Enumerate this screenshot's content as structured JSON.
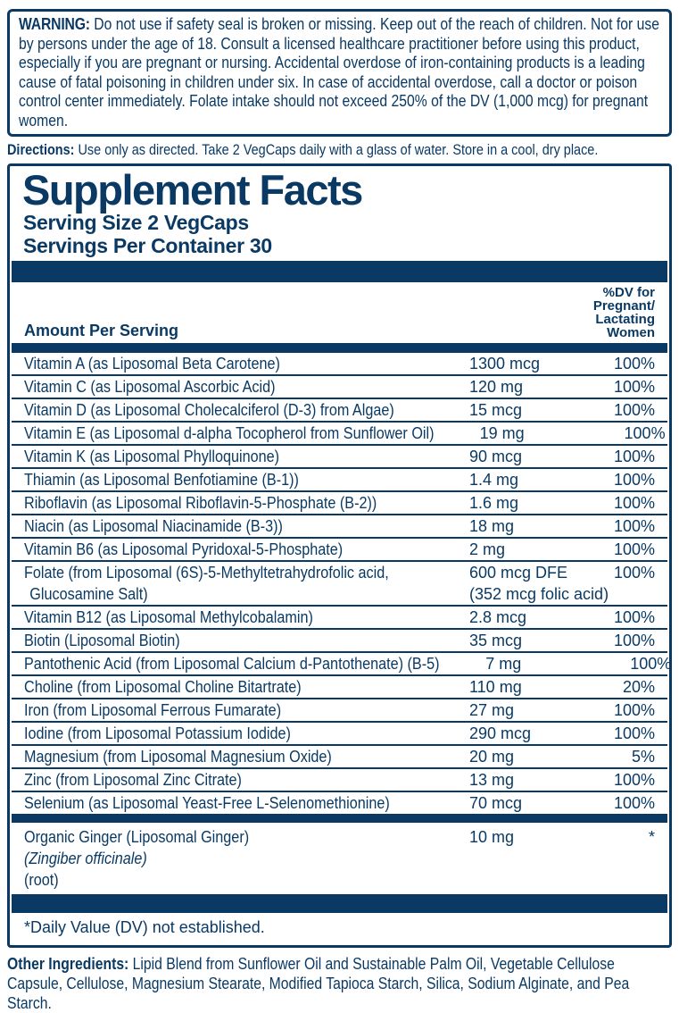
{
  "colors": {
    "navy": "#0a3a64"
  },
  "warning": {
    "label": "WARNING:",
    "text": "Do not use if safety seal is broken or missing. Keep out of the reach of children. Not for use by persons under the age of 18. Consult a licensed healthcare practitioner before using this product, especially if you are pregnant or nursing. Accidental overdose of iron-containing products is a leading cause of fatal poisoning in children under six. In case of accidental overdose, call a doctor or poison control center immediately. Folate intake should not exceed 250% of the DV (1,000 mcg) for pregnant women."
  },
  "directions": {
    "label": "Directions:",
    "text": "Use only as directed. Take 2 VegCaps daily with a glass of water. Store in a cool, dry place."
  },
  "supplement_facts": {
    "title": "Supplement Facts",
    "serving_size": "Serving Size 2 VegCaps",
    "servings_per_container": "Servings Per Container 30",
    "header": {
      "amount_label": "Amount Per Serving",
      "dv_label_lines": [
        "%DV for",
        "Pregnant/",
        "Lactating",
        "Women"
      ]
    },
    "rows": [
      {
        "name": "Vitamin A (as Liposomal Beta Carotene)",
        "amount": "1300 mcg",
        "dv": "100%"
      },
      {
        "name": "Vitamin C (as Liposomal Ascorbic Acid)",
        "amount": "120 mg",
        "dv": "100%"
      },
      {
        "name": "Vitamin D (as Liposomal Cholecalciferol (D-3) from Algae)",
        "amount": "15 mcg",
        "dv": "100%"
      },
      {
        "name": "Vitamin E (as Liposomal d-alpha Tocopherol from Sunflower Oil)",
        "amount": "19 mg",
        "dv": "100%"
      },
      {
        "name": "Vitamin K (as Liposomal Phylloquinone)",
        "amount": "90 mcg",
        "dv": "100%"
      },
      {
        "name": "Thiamin (as Liposomal Benfotiamine (B-1))",
        "amount": "1.4 mg",
        "dv": "100%"
      },
      {
        "name": "Riboflavin (as Liposomal Riboflavin-5-Phosphate (B-2))",
        "amount": "1.6 mg",
        "dv": "100%"
      },
      {
        "name": "Niacin (as Liposomal Niacinamide (B-3))",
        "amount": "18 mg",
        "dv": "100%"
      },
      {
        "name": "Vitamin B6 (as Liposomal Pyridoxal-5-Phosphate)",
        "amount": "2 mg",
        "dv": "100%"
      },
      {
        "name": "Folate (from Liposomal (6S)-5-Methyltetrahydrofolic acid,",
        "name_line2": "Glucosamine Salt)",
        "amount": "600 mcg DFE",
        "amount_line2": "(352 mcg folic acid)",
        "dv": "100%"
      },
      {
        "name": "Vitamin B12 (as Liposomal Methylcobalamin)",
        "amount": "2.8 mcg",
        "dv": "100%"
      },
      {
        "name": "Biotin (Liposomal Biotin)",
        "amount": "35 mcg",
        "dv": "100%"
      },
      {
        "name": "Pantothenic Acid (from Liposomal Calcium d-Pantothenate) (B-5)",
        "amount": "7 mg",
        "dv": "100%"
      },
      {
        "name": "Choline (from Liposomal Choline Bitartrate)",
        "amount": "110 mg",
        "dv": "20%"
      },
      {
        "name": "Iron (from Liposomal Ferrous Fumarate)",
        "amount": "27 mg",
        "dv": "100%"
      },
      {
        "name": "Iodine (from Liposomal Potassium Iodide)",
        "amount": "290 mcg",
        "dv": "100%"
      },
      {
        "name": "Magnesium (from Liposomal Magnesium Oxide)",
        "amount": "20 mg",
        "dv": "5%"
      },
      {
        "name": "Zinc (from Liposomal Zinc Citrate)",
        "amount": "13 mg",
        "dv": "100%"
      },
      {
        "name": "Selenium (as Liposomal Yeast-Free L-Selenomethionine)",
        "amount": "70 mcg",
        "dv": "100%"
      }
    ],
    "botanical_row": {
      "name_prefix": "Organic Ginger (Liposomal Ginger) ",
      "name_italic": "(Zingiber officinale)",
      "name_suffix": " (root)",
      "amount": "10 mg",
      "dv": "*"
    },
    "footnote": "*Daily Value (DV) not established."
  },
  "other_ingredients": {
    "label": "Other Ingredients:",
    "text": "Lipid Blend from Sunflower Oil and Sustainable Palm Oil, Vegetable Cellulose Capsule, Cellulose, Magnesium Stearate, Modified Tapioca Starch, Silica, Sodium Alginate, and Pea Starch."
  }
}
